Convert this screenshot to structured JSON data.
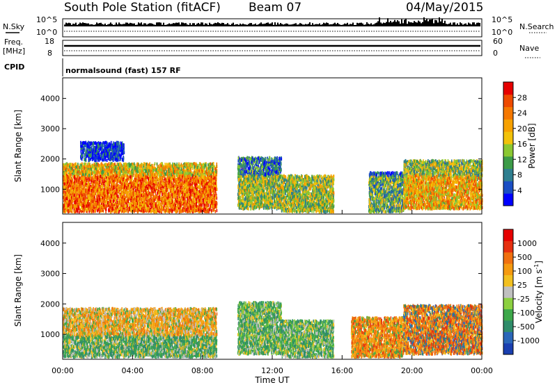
{
  "header": {
    "title": "South Pole Station (fitACF)",
    "beam": "Beam 07",
    "date": "04/May/2015"
  },
  "summary_panels": {
    "nsky_label": "N.Sky",
    "nsky_ticks": [
      "10^5",
      "10^0"
    ],
    "nsearch_label": "N.Search",
    "nsearch_ticks": [
      "10^5",
      "10^0"
    ],
    "freq_label": "Freq.",
    "freq_unit": "[MHz]",
    "freq_ticks": [
      "18",
      "8"
    ],
    "nave_label": "Nave",
    "nave_ticks": [
      "60",
      "0"
    ],
    "cpid_label": "CPID",
    "cpid_value": "normalsound (fast) 157 RF"
  },
  "chart_data": [
    {
      "type": "heatmap",
      "name": "power-panel",
      "ylabel": "Slant Range [km]",
      "yticks": [
        "1000",
        "2000",
        "3000",
        "4000"
      ],
      "ylim": [
        180,
        4680
      ],
      "xlim": [
        0,
        24
      ],
      "colorbar": {
        "label": "Power [dB]",
        "ticks": [
          "4",
          "8",
          "12",
          "16",
          "20",
          "24",
          "28"
        ],
        "colors": [
          "#0000ff",
          "#1a4ec4",
          "#2f7f8f",
          "#3c9b48",
          "#8bc832",
          "#f2c20a",
          "#f7a100",
          "#f57800",
          "#ee4a00",
          "#e60000"
        ]
      },
      "echo_regions": [
        {
          "t0": 0.0,
          "t1": 8.8,
          "r0": 300,
          "r1": 1900,
          "level": 0.8
        },
        {
          "t0": 1.0,
          "t1": 3.5,
          "r0": 2000,
          "r1": 2600,
          "level": 0.3
        },
        {
          "t0": 10.0,
          "t1": 12.5,
          "r0": 400,
          "r1": 2100,
          "level": 0.45
        },
        {
          "t0": 12.5,
          "t1": 15.5,
          "r0": 300,
          "r1": 1500,
          "level": 0.45
        },
        {
          "t0": 17.5,
          "t1": 19.5,
          "r0": 300,
          "r1": 1600,
          "level": 0.35
        },
        {
          "t0": 19.5,
          "t1": 24.0,
          "r0": 400,
          "r1": 2000,
          "level": 0.65
        }
      ]
    },
    {
      "type": "heatmap",
      "name": "velocity-panel",
      "ylabel": "Slant Range [km]",
      "yticks": [
        "1000",
        "2000",
        "3000",
        "4000"
      ],
      "ylim": [
        180,
        4680
      ],
      "xlim": [
        0,
        24
      ],
      "xticks": [
        "00:00",
        "04:00",
        "08:00",
        "12:00",
        "16:00",
        "20:00",
        "00:00"
      ],
      "xlabel": "Time UT",
      "colorbar": {
        "label": "Velocity [m s",
        "label_sup": "-1",
        "label_end": "]",
        "ticks": [
          "1000",
          "500",
          "100",
          "25",
          "-25",
          "-100",
          "-500",
          "-1000"
        ],
        "colors": [
          "#1a3fb0",
          "#2a66b8",
          "#2f8c6a",
          "#3da84a",
          "#8cd040",
          "#c0c0c0",
          "#f2c020",
          "#f59a10",
          "#f07010",
          "#e63010",
          "#e60000"
        ]
      },
      "echo_regions": [
        {
          "t0": 0.0,
          "t1": 8.8,
          "r0": 300,
          "r1": 1900,
          "mix": "green-orange"
        },
        {
          "t0": 10.0,
          "t1": 12.5,
          "r0": 400,
          "r1": 2100,
          "mix": "green"
        },
        {
          "t0": 12.5,
          "t1": 15.5,
          "r0": 300,
          "r1": 1500,
          "mix": "green"
        },
        {
          "t0": 16.5,
          "t1": 19.5,
          "r0": 300,
          "r1": 1600,
          "mix": "orange"
        },
        {
          "t0": 19.5,
          "t1": 24.0,
          "r0": 400,
          "r1": 2000,
          "mix": "orange-blue"
        }
      ]
    }
  ]
}
